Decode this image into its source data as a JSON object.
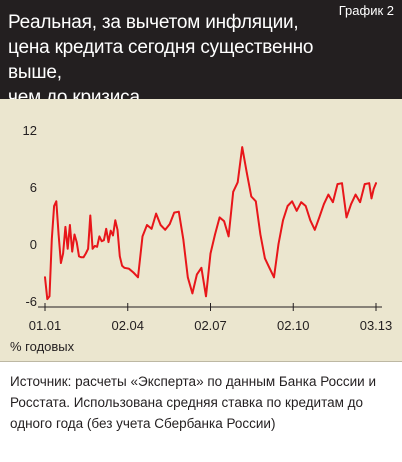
{
  "header": {
    "title": "Реальная, за вычетом инфляции,\nцена кредита сегодня существенно выше,\nчем до кризиса",
    "label": "График 2"
  },
  "colors": {
    "header_bg": "#231f20",
    "chart_bg": "#ebe6cf",
    "line": "#e8161a",
    "axis": "#231f20"
  },
  "chart_data": {
    "type": "line",
    "title": "",
    "xlabel": "",
    "ylabel": "% годовых",
    "ylim": [
      -6,
      12
    ],
    "xlim": [
      "01.01",
      "03.13"
    ],
    "yticks": [
      12,
      6,
      0,
      -6
    ],
    "xticks": [
      "01.01",
      "02.04",
      "02.07",
      "02.10",
      "03.13"
    ],
    "grid": false,
    "series": [
      {
        "x": [
          "2001-01",
          "2001-02",
          "2001-03",
          "2001-04",
          "2001-05",
          "2001-06",
          "2001-07",
          "2001-08",
          "2001-09",
          "2001-10",
          "2001-11",
          "2001-12",
          "2002-01",
          "2002-02",
          "2002-03",
          "2002-04",
          "2002-05",
          "2002-06",
          "2002-07",
          "2002-08",
          "2002-09",
          "2002-10",
          "2002-11",
          "2002-12",
          "2003-01",
          "2003-02",
          "2003-03",
          "2003-04",
          "2003-05",
          "2003-06",
          "2003-07",
          "2003-08",
          "2003-09",
          "2003-10",
          "2003-11",
          "2003-12",
          "2004-02",
          "2004-04",
          "2004-06",
          "2004-08",
          "2004-10",
          "2004-12",
          "2005-02",
          "2005-04",
          "2005-06",
          "2005-08",
          "2005-10",
          "2005-12",
          "2006-02",
          "2006-04",
          "2006-06",
          "2006-08",
          "2006-10",
          "2006-12",
          "2007-02",
          "2007-04",
          "2007-06",
          "2007-08",
          "2007-10",
          "2007-12",
          "2008-02",
          "2008-04",
          "2008-06",
          "2008-08",
          "2008-10",
          "2008-12",
          "2009-02",
          "2009-04",
          "2009-06",
          "2009-08",
          "2009-10",
          "2009-12",
          "2010-02",
          "2010-04",
          "2010-06",
          "2010-08",
          "2010-10",
          "2010-12",
          "2011-02",
          "2011-04",
          "2011-06",
          "2011-08",
          "2011-10",
          "2011-12",
          "2012-02",
          "2012-04",
          "2012-06",
          "2012-08",
          "2012-10",
          "2012-12",
          "2013-01",
          "2013-02",
          "2013-03"
        ],
        "values": [
          -3.5,
          -5.8,
          -5.5,
          0.5,
          4,
          4.5,
          1,
          -2,
          -1,
          1.8,
          -0.5,
          2,
          -0.8,
          1,
          0.2,
          -1.3,
          -1.4,
          -1.4,
          -1,
          -0.5,
          3,
          -0.5,
          -0.2,
          -0.3,
          0.8,
          0.3,
          0.4,
          1.6,
          0.2,
          1.4,
          0.9,
          2.5,
          1.5,
          -1.3,
          -2.3,
          -2.5,
          -2.6,
          -3,
          -3.5,
          0.8,
          2,
          1.6,
          3.2,
          2,
          1.5,
          2.1,
          3.3,
          3.4,
          0.5,
          -3.5,
          -5.2,
          -3.2,
          -2.5,
          -5.5,
          -1,
          1,
          2.8,
          2.4,
          0.8,
          5.5,
          6.5,
          10.2,
          7.5,
          5,
          4.5,
          1,
          -1.5,
          -2.5,
          -3.5,
          0,
          2.5,
          4,
          4.5,
          3.5,
          4.4,
          4,
          2.5,
          1.5,
          2.8,
          4.2,
          5.2,
          4.4,
          6.3,
          6.4,
          2.8,
          4.2,
          5.2,
          4.4,
          6.3,
          6.4,
          4.8,
          5.8,
          6.4
        ]
      }
    ]
  },
  "source_text": "Источник: расчеты «Эксперта» по данным Банка России и Росстата. Использована средняя ставка по кредитам до одного года (без учета Сбербанка России)"
}
